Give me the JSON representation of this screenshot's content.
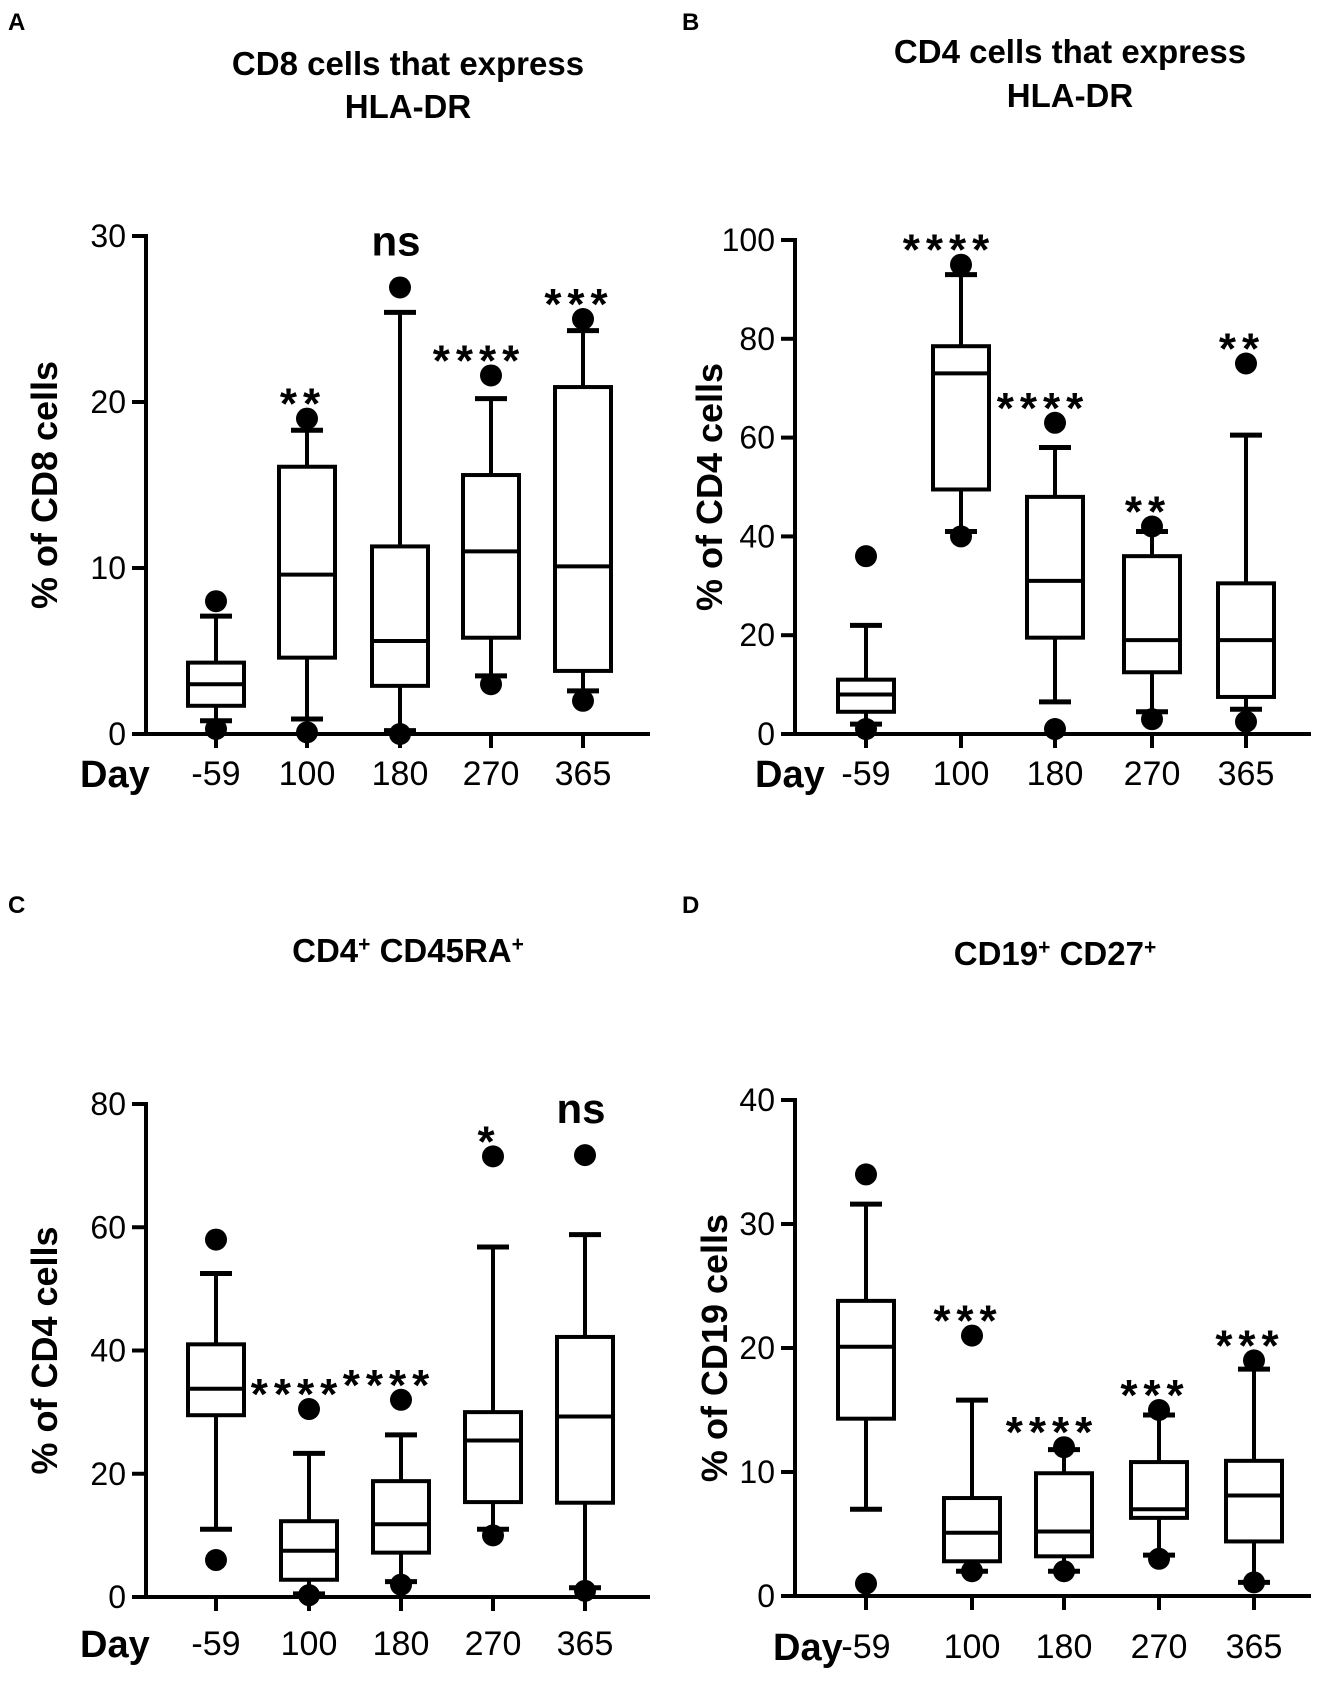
{
  "colors": {
    "ink": "#000000",
    "background": "#ffffff"
  },
  "chart_data": [
    {
      "panel": "A",
      "type": "boxplot",
      "title_lines": [
        "CD8 cells that express",
        "HLA-DR"
      ],
      "title_sup": [],
      "ylabel": "% of CD8 cells",
      "xlabel": "Day",
      "categories": [
        "-59",
        "100",
        "180",
        "270",
        "365"
      ],
      "ylim": [
        0,
        30
      ],
      "yticks": [
        0,
        10,
        20,
        30
      ],
      "ytick_labels": [
        "0",
        "10",
        "20",
        "30"
      ],
      "boxes": [
        {
          "whisker_low": 0.8,
          "q1": 1.7,
          "median": 3.0,
          "q3": 4.3,
          "whisker_high": 7.1,
          "outliers": [
            8.0,
            0.3
          ]
        },
        {
          "whisker_low": 0.9,
          "q1": 4.6,
          "median": 9.6,
          "q3": 16.1,
          "whisker_high": 18.3,
          "outliers": [
            19.0,
            0.1
          ]
        },
        {
          "whisker_low": 0.2,
          "q1": 2.9,
          "median": 5.6,
          "q3": 11.3,
          "whisker_high": 25.4,
          "outliers": [
            26.9,
            0.0
          ]
        },
        {
          "whisker_low": 3.5,
          "q1": 5.8,
          "median": 11.0,
          "q3": 15.6,
          "whisker_high": 20.2,
          "outliers": [
            21.6,
            3.0
          ]
        },
        {
          "whisker_low": 2.6,
          "q1": 3.8,
          "median": 10.1,
          "q3": 20.9,
          "whisker_high": 24.3,
          "outliers": [
            25.0,
            2.0
          ]
        }
      ],
      "significance": [
        "",
        "**",
        "ns",
        "****",
        "***"
      ]
    },
    {
      "panel": "B",
      "type": "boxplot",
      "title_lines": [
        "CD4 cells that express",
        "HLA-DR"
      ],
      "title_sup": [],
      "ylabel": "% of CD4 cells",
      "xlabel": "Day",
      "categories": [
        "-59",
        "100",
        "180",
        "270",
        "365"
      ],
      "ylim": [
        0,
        100
      ],
      "yticks": [
        0,
        20,
        40,
        60,
        80,
        100
      ],
      "ytick_labels": [
        "0",
        "20",
        "40",
        "60",
        "80",
        "100"
      ],
      "boxes": [
        {
          "whisker_low": 2,
          "q1": 4.5,
          "median": 8,
          "q3": 11,
          "whisker_high": 22,
          "outliers": [
            36,
            1
          ]
        },
        {
          "whisker_low": 41,
          "q1": 49.5,
          "median": 73,
          "q3": 78.5,
          "whisker_high": 93,
          "outliers": [
            95,
            40
          ]
        },
        {
          "whisker_low": 6.5,
          "q1": 19.5,
          "median": 31,
          "q3": 48,
          "whisker_high": 58,
          "outliers": [
            63,
            1
          ]
        },
        {
          "whisker_low": 4.5,
          "q1": 12.5,
          "median": 19,
          "q3": 36,
          "whisker_high": 41,
          "outliers": [
            42,
            3
          ]
        },
        {
          "whisker_low": 5,
          "q1": 7.5,
          "median": 19,
          "q3": 30.5,
          "whisker_high": 60.5,
          "outliers": [
            75,
            2.5
          ]
        }
      ],
      "significance": [
        "",
        "****",
        "****",
        "**",
        "**"
      ]
    },
    {
      "panel": "C",
      "type": "boxplot",
      "title_lines": [
        "CD4 CD45RA"
      ],
      "title_sup": [
        "CD4",
        "+",
        " CD45RA",
        "+"
      ],
      "ylabel": "% of CD4 cells",
      "xlabel": "Day",
      "categories": [
        "-59",
        "100",
        "180",
        "270",
        "365"
      ],
      "ylim": [
        0,
        80
      ],
      "yticks": [
        0,
        20,
        40,
        60,
        80
      ],
      "ytick_labels": [
        "0",
        "20",
        "40",
        "60",
        "80"
      ],
      "boxes": [
        {
          "whisker_low": 11,
          "q1": 29.5,
          "median": 33.8,
          "q3": 41,
          "whisker_high": 52.5,
          "outliers": [
            58,
            6
          ]
        },
        {
          "whisker_low": 0.5,
          "q1": 2.8,
          "median": 7.5,
          "q3": 12.3,
          "whisker_high": 23.3,
          "outliers": [
            30.5,
            0.3
          ]
        },
        {
          "whisker_low": 2.5,
          "q1": 7.2,
          "median": 11.8,
          "q3": 18.8,
          "whisker_high": 26.3,
          "outliers": [
            32,
            2
          ]
        },
        {
          "whisker_low": 11,
          "q1": 15.4,
          "median": 25.4,
          "q3": 30,
          "whisker_high": 56.8,
          "outliers": [
            71.5,
            10
          ]
        },
        {
          "whisker_low": 1.5,
          "q1": 15.3,
          "median": 29.3,
          "q3": 42.2,
          "whisker_high": 58.8,
          "outliers": [
            71.7,
            1
          ]
        }
      ],
      "significance": [
        "",
        "****",
        "****",
        "*",
        "ns"
      ]
    },
    {
      "panel": "D",
      "type": "boxplot",
      "title_lines": [
        "CD19 CD27"
      ],
      "title_sup": [
        "CD19",
        "+",
        " CD27",
        "+"
      ],
      "ylabel": "% of CD19 cells",
      "xlabel": "Day",
      "categories": [
        "-59",
        "100",
        "180",
        "270",
        "365"
      ],
      "ylim": [
        0,
        40
      ],
      "yticks": [
        0,
        10,
        20,
        30,
        40
      ],
      "ytick_labels": [
        "0",
        "10",
        "20",
        "30",
        "40"
      ],
      "boxes": [
        {
          "whisker_low": 7,
          "q1": 14.3,
          "median": 20.1,
          "q3": 23.8,
          "whisker_high": 31.6,
          "outliers": [
            34,
            1
          ]
        },
        {
          "whisker_low": 2,
          "q1": 2.8,
          "median": 5.1,
          "q3": 7.9,
          "whisker_high": 15.8,
          "outliers": [
            21,
            2
          ]
        },
        {
          "whisker_low": 2,
          "q1": 3.2,
          "median": 5.2,
          "q3": 9.9,
          "whisker_high": 11.8,
          "outliers": [
            12,
            2
          ]
        },
        {
          "whisker_low": 3.3,
          "q1": 6.3,
          "median": 7,
          "q3": 10.8,
          "whisker_high": 14.6,
          "outliers": [
            15,
            3
          ]
        },
        {
          "whisker_low": 1.1,
          "q1": 4.4,
          "median": 8.1,
          "q3": 10.9,
          "whisker_high": 18.3,
          "outliers": [
            19,
            1.1
          ]
        }
      ],
      "significance": [
        "",
        "***",
        "****",
        "***",
        "***"
      ]
    }
  ]
}
